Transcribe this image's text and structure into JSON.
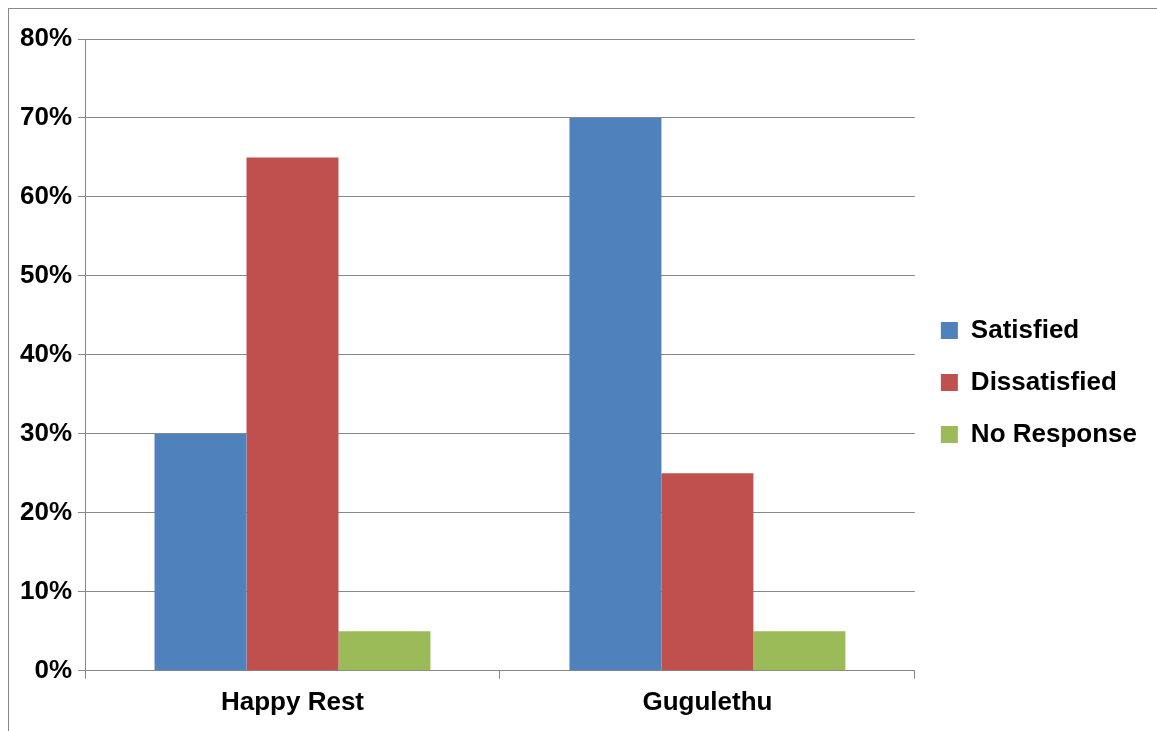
{
  "chart_data": {
    "type": "bar",
    "categories": [
      "Happy Rest",
      "Gugulethu"
    ],
    "series": [
      {
        "name": "Satisfied",
        "color": "#4f81bd",
        "values": [
          30,
          70
        ]
      },
      {
        "name": "Dissatisfied",
        "color": "#c0504d",
        "values": [
          65,
          25
        ]
      },
      {
        "name": "No Response",
        "color": "#9bbb59",
        "values": [
          5,
          5
        ]
      }
    ],
    "ylim": [
      0,
      80
    ],
    "yticks": [
      {
        "value": 0,
        "label": "0%"
      },
      {
        "value": 10,
        "label": "10%"
      },
      {
        "value": 20,
        "label": "20%"
      },
      {
        "value": 30,
        "label": "30%"
      },
      {
        "value": 40,
        "label": "40%"
      },
      {
        "value": 50,
        "label": "50%"
      },
      {
        "value": 60,
        "label": "60%"
      },
      {
        "value": 70,
        "label": "70%"
      },
      {
        "value": 80,
        "label": "80%"
      }
    ],
    "grid": "y",
    "legend": "right"
  }
}
